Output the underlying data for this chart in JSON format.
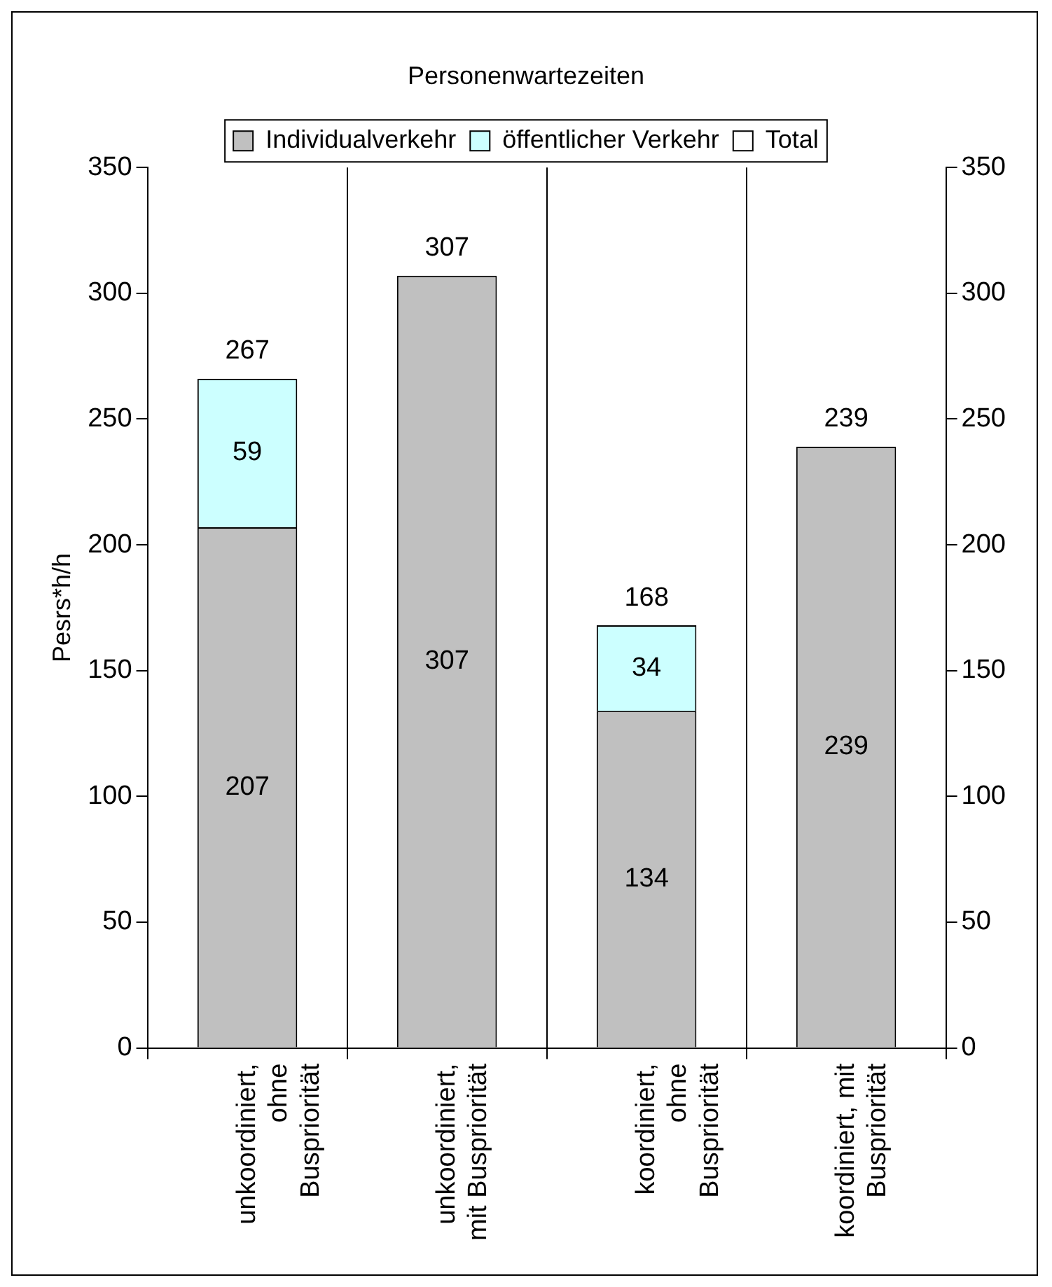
{
  "chart_data": {
    "type": "bar",
    "title": "Personenwartezeiten",
    "ylabel": "Pesrs*h/h",
    "categories": [
      "unkoordiniert, ohne Buspriorität",
      "unkoordiniert, mit Buspriorität",
      "koordiniert, ohne Buspriorität",
      "koordiniert, mit Buspriorität"
    ],
    "series": [
      {
        "name": "Individualverkehr",
        "color": "#c0c0c0",
        "values": [
          207,
          307,
          134,
          239
        ]
      },
      {
        "name": "öffentlicher Verkehr",
        "color": "#ccffff",
        "values": [
          59,
          null,
          34,
          null
        ]
      },
      {
        "name": "Total",
        "color": "#ffffff",
        "values": [
          null,
          null,
          null,
          null
        ]
      }
    ],
    "stacked": true,
    "totals": [
      "267",
      "307",
      "168",
      "239"
    ],
    "data_labels": true,
    "ylim": [
      0,
      350
    ],
    "yticks": [
      0,
      50,
      100,
      150,
      200,
      250,
      300,
      350
    ],
    "y2lim": [
      0,
      350
    ],
    "y2ticks": [
      0,
      50,
      100,
      150,
      200,
      250,
      300,
      350
    ],
    "grid": "x",
    "legend": "top"
  }
}
